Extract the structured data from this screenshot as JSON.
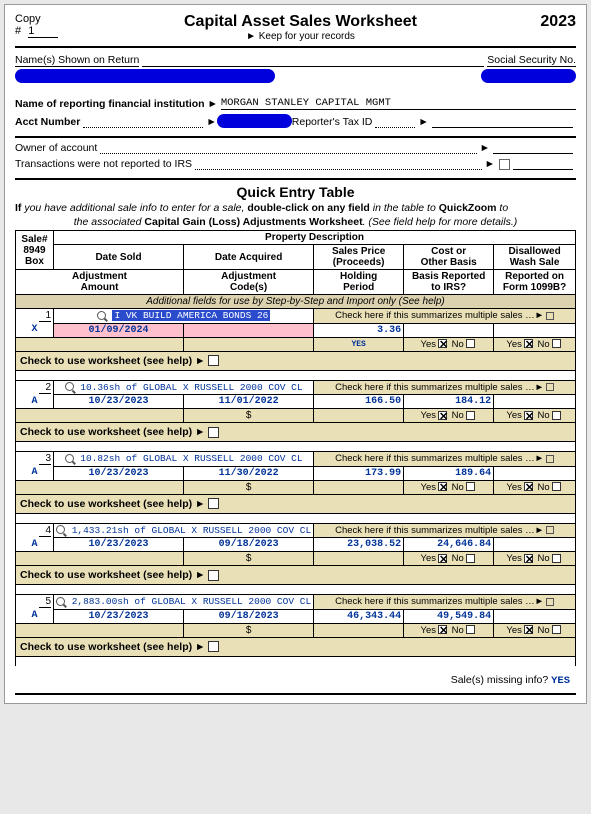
{
  "header": {
    "copy_label": "Copy",
    "copy_num_prefix": "#",
    "copy_num": "1",
    "title": "Capital Asset Sales Worksheet",
    "subtitle": "Keep for your records",
    "year": "2023"
  },
  "ident": {
    "names_label": "Name(s) Shown on Return",
    "ssn_label": "Social Security No.",
    "institution_label": "Name of reporting financial institution",
    "institution_value": "MORGAN STANLEY CAPITAL MGMT",
    "acct_label": "Acct Number",
    "reporter_label": "Reporter's Tax ID",
    "owner_label": "Owner of account",
    "not_reported_label": "Transactions were not reported to IRS"
  },
  "quick": {
    "title": "Quick Entry Table",
    "help_line1_pre": "If ",
    "help_line1_ital": "you have additional sale info to enter for a sale, ",
    "help_line1_bold": "double-click on any field ",
    "help_line1_ital2": "in the table to ",
    "help_line1_bold2": "QuickZoom ",
    "help_line1_ital3": "to",
    "help_line2_pre": "the associated ",
    "help_line2_bold": "Capital Gain (Loss) Adjustments Worksheet",
    "help_line2_ital": ". (See field help for more details.)"
  },
  "table_headers": {
    "col1a": "Sale#",
    "col1b": "8949",
    "col1c": "Box",
    "col2": "Property Description",
    "col3": "Date Sold",
    "col4": "Date Acquired",
    "col5a": "Sales Price",
    "col5b": "(Proceeds)",
    "col6a": "Cost or",
    "col6b": "Other Basis",
    "col7a": "Disallowed",
    "col7b": "Wash Sale",
    "r2c1a": "Adjustment",
    "r2c1b": "Amount",
    "r2c2a": "Adjustment",
    "r2c2b": "Code(s)",
    "r2c3a": "Holding",
    "r2c3b": "Period",
    "r2c4a": "Basis Reported",
    "r2c4b": "to IRS?",
    "r2c5a": "Reported on",
    "r2c5b": "Form 1099B?",
    "additional": "Additional fields for use by Step-by-Step and Import only (See help)"
  },
  "labels": {
    "check_summ": "Check here if this summarizes multiple sales",
    "yes": "Yes",
    "no": "No",
    "yes_caps": "YES",
    "dollar": "$",
    "ws_text": "Check to use worksheet (see help)"
  },
  "sales": [
    {
      "num": "1",
      "box": "X",
      "desc": "I VK BUILD AMERICA BONDS 26",
      "desc_hl": true,
      "date_sold": "01/09/2024",
      "date_acq": "",
      "price": "3.36",
      "cost": "",
      "pink_sold": true,
      "pink_acq": true,
      "hold_val": "YES",
      "basis_yes_x": true,
      "basis_no": false,
      "rep_yes_x": true,
      "rep_no": false
    },
    {
      "num": "2",
      "box": "A",
      "desc": "10.36sh of GLOBAL X RUSSELL 2000 COV CL",
      "date_sold": "10/23/2023",
      "date_acq": "11/01/2022",
      "price": "166.50",
      "cost": "184.12",
      "basis_yes_x": true,
      "rep_yes_x": true
    },
    {
      "num": "3",
      "box": "A",
      "desc": "10.82sh of GLOBAL X RUSSELL 2000 COV CL",
      "date_sold": "10/23/2023",
      "date_acq": "11/30/2022",
      "price": "173.99",
      "cost": "189.64",
      "basis_yes_x": true,
      "rep_yes_x": true
    },
    {
      "num": "4",
      "box": "A",
      "desc": "1,433.21sh of GLOBAL X RUSSELL 2000 COV CL",
      "date_sold": "10/23/2023",
      "date_acq": "09/18/2023",
      "price": "23,038.52",
      "cost": "24,646.84",
      "basis_yes_x": true,
      "rep_yes_x": true
    },
    {
      "num": "5",
      "box": "A",
      "desc": "2,883.00sh of GLOBAL X RUSSELL 2000 COV CL",
      "date_sold": "10/23/2023",
      "date_acq": "09/18/2023",
      "price": "46,343.44",
      "cost": "49,549.84",
      "basis_yes_x": true,
      "rep_yes_x": true
    }
  ],
  "footer": {
    "missing_label": "Sale(s) missing info?",
    "missing_val": "YES"
  }
}
